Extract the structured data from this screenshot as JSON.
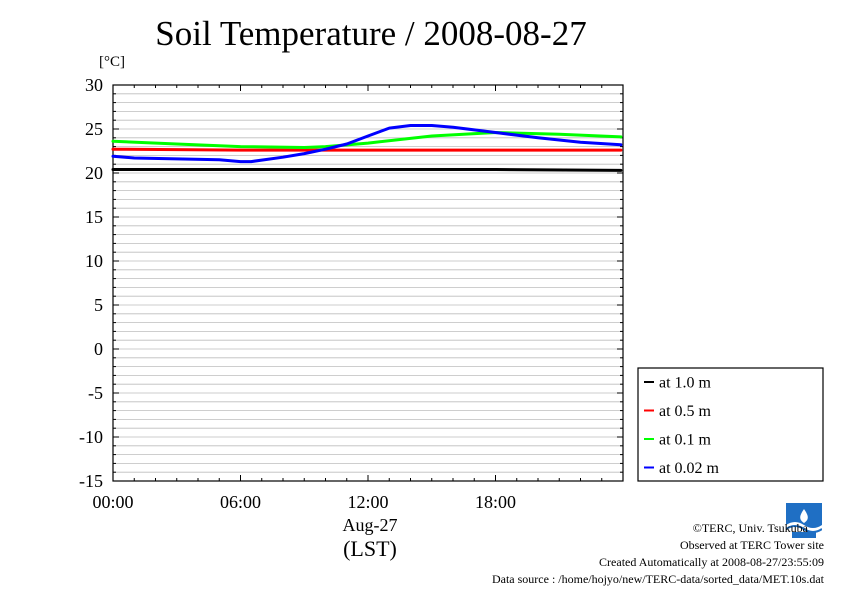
{
  "header": {
    "title": "Soil Temperature / 2008-08-27",
    "unit": "[°C]"
  },
  "axis": {
    "date": "Aug-27",
    "xlabel": "(LST)"
  },
  "footer": {
    "copyright": "©TERC, Univ. Tsukuba",
    "observed": "Observed at TERC Tower site",
    "created": "Created Automatically at 2008-08-27/23:55:09",
    "source": "Data source : /home/hojyo/new/TERC-data/sorted_data/MET.10s.dat"
  },
  "logo": {
    "icon": "terc-logo-icon",
    "text": "TERC",
    "color": "#1f6fc4"
  },
  "chart_data": {
    "type": "line",
    "title": "Soil Temperature / 2008-08-27",
    "ylabel": "[°C]",
    "xlabel": "(LST)",
    "xlim": [
      0,
      24
    ],
    "ylim": [
      -15,
      30
    ],
    "xticks": [
      {
        "v": 0,
        "label": "00:00"
      },
      {
        "v": 6,
        "label": "06:00"
      },
      {
        "v": 12,
        "label": "12:00"
      },
      {
        "v": 18,
        "label": "18:00"
      }
    ],
    "yticks": [
      {
        "v": 30,
        "label": "30"
      },
      {
        "v": 25,
        "label": "25"
      },
      {
        "v": 20,
        "label": "20"
      },
      {
        "v": 15,
        "label": "15"
      },
      {
        "v": 10,
        "label": "10"
      },
      {
        "v": 5,
        "label": "5"
      },
      {
        "v": 0,
        "label": "0"
      },
      {
        "v": -5,
        "label": "-5"
      },
      {
        "v": -10,
        "label": "-10"
      },
      {
        "v": -15,
        "label": "-15"
      }
    ],
    "grid": true,
    "legend": "bottom-right",
    "series": [
      {
        "name": "at 1.0 m",
        "color": "#000000",
        "x": [
          0,
          6,
          12,
          18,
          23.9
        ],
        "y": [
          20.4,
          20.4,
          20.4,
          20.4,
          20.3
        ]
      },
      {
        "name": "at 0.5 m",
        "color": "#ff0000",
        "x": [
          0,
          6,
          12,
          18,
          23.9
        ],
        "y": [
          22.7,
          22.6,
          22.6,
          22.6,
          22.6
        ]
      },
      {
        "name": "at 0.1 m",
        "color": "#00ff00",
        "x": [
          0,
          3,
          6,
          9,
          10,
          12,
          15,
          18,
          21,
          23.9
        ],
        "y": [
          23.6,
          23.3,
          23.0,
          22.9,
          23.0,
          23.4,
          24.2,
          24.6,
          24.4,
          24.1
        ]
      },
      {
        "name": "at 0.02 m",
        "color": "#0000ff",
        "x": [
          0,
          1,
          3,
          5,
          6,
          6.5,
          8,
          9,
          10,
          11,
          12,
          13,
          14,
          15,
          16,
          18,
          20,
          22,
          23.9
        ],
        "y": [
          21.9,
          21.7,
          21.6,
          21.5,
          21.3,
          21.3,
          21.8,
          22.2,
          22.7,
          23.3,
          24.2,
          25.1,
          25.4,
          25.4,
          25.2,
          24.6,
          24.0,
          23.5,
          23.2
        ]
      }
    ]
  }
}
